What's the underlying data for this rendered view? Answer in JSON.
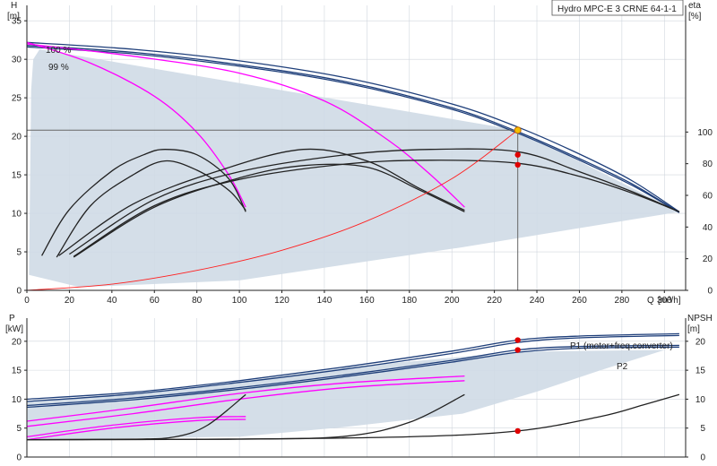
{
  "chart_data": [
    {
      "type": "line",
      "title": "Hydro MPC-E 3 CRNE 64-1-1",
      "y_label": "H",
      "y_unit": "[m]",
      "x_label": "Q",
      "x_unit": "[m³/h]",
      "y2_label": "eta",
      "y2_unit": "[%]",
      "xlim": [
        0,
        310
      ],
      "ylim": [
        0,
        37
      ],
      "y2lim": [
        0,
        180
      ],
      "x_ticks": [
        0,
        20,
        40,
        60,
        80,
        100,
        120,
        140,
        160,
        180,
        200,
        220,
        240,
        260,
        280,
        300
      ],
      "y_ticks": [
        0,
        5,
        10,
        15,
        20,
        25,
        30,
        35
      ],
      "y2_ticks": [
        0,
        20,
        40,
        60,
        80,
        100
      ],
      "grid": true,
      "annotations": {
        "speed_100": "100 %",
        "speed_99": "99 %"
      },
      "duty_point": {
        "q": 231,
        "h": 20.8,
        "eta_marks": [
          17.6,
          16.3
        ]
      },
      "shaded_region": [
        [
          1,
          2
        ],
        [
          2,
          26
        ],
        [
          3,
          30
        ],
        [
          6,
          31.3
        ],
        [
          231,
          20.8
        ],
        [
          307,
          10.2
        ],
        [
          205,
          5.6
        ],
        [
          100,
          1.3
        ],
        [
          25,
          0.4
        ]
      ],
      "series": [
        {
          "name": "",
          "color": "#1f3f7a",
          "points": [
            [
              0,
              32.2
            ],
            [
              50,
              31.3
            ],
            [
              100,
              29.8
            ],
            [
              150,
              27.6
            ],
            [
              200,
              24.2
            ],
            [
              231,
              21.2
            ],
            [
              260,
              17.7
            ],
            [
              285,
              14.2
            ],
            [
              307,
              10.2
            ]
          ]
        },
        {
          "name": "",
          "color": "#1f3f7a",
          "points": [
            [
              0,
              31.8
            ],
            [
              50,
              30.9
            ],
            [
              100,
              29.3
            ],
            [
              150,
              27.1
            ],
            [
              200,
              23.7
            ],
            [
              231,
              20.6
            ],
            [
              260,
              17.1
            ],
            [
              285,
              13.8
            ],
            [
              307,
              10.1
            ]
          ]
        },
        {
          "name": "",
          "color": "#1f3f7a",
          "points": [
            [
              0,
              31.6
            ],
            [
              50,
              30.7
            ],
            [
              100,
              29.1
            ],
            [
              150,
              26.9
            ],
            [
              200,
              23.5
            ],
            [
              231,
              20.4
            ],
            [
              260,
              16.9
            ],
            [
              285,
              13.6
            ],
            [
              307,
              10.1
            ]
          ]
        },
        {
          "name": "",
          "color": "#ff00ff",
          "points": [
            [
              0,
              32.2
            ],
            [
              30,
              29.5
            ],
            [
              60,
              25.2
            ],
            [
              80,
              20.5
            ],
            [
              95,
              15.0
            ],
            [
              103,
              10.8
            ]
          ]
        },
        {
          "name": "",
          "color": "#ff00ff",
          "points": [
            [
              0,
              32.0
            ],
            [
              50,
              30.4
            ],
            [
              100,
              28.2
            ],
            [
              140,
              24.6
            ],
            [
              170,
              19.5
            ],
            [
              190,
              15.0
            ],
            [
              206,
              10.8
            ]
          ]
        },
        {
          "name": "",
          "color": "#222222",
          "points": [
            [
              7,
              4.5
            ],
            [
              20,
              10.5
            ],
            [
              40,
              15.5
            ],
            [
              55,
              17.6
            ],
            [
              65,
              18.3
            ],
            [
              80,
              17.6
            ],
            [
              95,
              14.5
            ],
            [
              103,
              10.2
            ]
          ]
        },
        {
          "name": "",
          "color": "#222222",
          "points": [
            [
              14,
              4.3
            ],
            [
              30,
              11.0
            ],
            [
              50,
              15.0
            ],
            [
              65,
              16.8
            ],
            [
              80,
              15.6
            ],
            [
              95,
              13.0
            ],
            [
              103,
              10.4
            ]
          ]
        },
        {
          "name": "",
          "color": "#222222",
          "points": [
            [
              15,
              4.5
            ],
            [
              50,
              11.2
            ],
            [
              90,
              15.5
            ],
            [
              130,
              18.3
            ],
            [
              160,
              16.8
            ],
            [
              185,
              13.2
            ],
            [
              206,
              10.4
            ]
          ]
        },
        {
          "name": "",
          "color": "#222222",
          "points": [
            [
              22,
              4.3
            ],
            [
              60,
              10.8
            ],
            [
              100,
              14.6
            ],
            [
              130,
              16.2
            ],
            [
              160,
              16.0
            ],
            [
              185,
              13.0
            ],
            [
              206,
              10.2
            ]
          ]
        },
        {
          "name": "",
          "color": "#222222",
          "points": [
            [
              20,
              4.7
            ],
            [
              60,
              11.8
            ],
            [
              100,
              15.4
            ],
            [
              150,
              17.6
            ],
            [
              190,
              18.3
            ],
            [
              231,
              18.0
            ],
            [
              260,
              15.4
            ],
            [
              285,
              12.8
            ],
            [
              307,
              10.2
            ]
          ]
        },
        {
          "name": "",
          "color": "#222222",
          "points": [
            [
              22,
              4.4
            ],
            [
              60,
              11.0
            ],
            [
              100,
              14.4
            ],
            [
              150,
              16.4
            ],
            [
              190,
              16.9
            ],
            [
              231,
              16.5
            ],
            [
              260,
              14.8
            ],
            [
              285,
              12.6
            ],
            [
              307,
              10.2
            ]
          ]
        },
        {
          "name": "",
          "color": "#ff2020",
          "points": [
            [
              0,
              0
            ],
            [
              40,
              0.8
            ],
            [
              80,
              2.6
            ],
            [
              120,
              5.2
            ],
            [
              160,
              9.0
            ],
            [
              200,
              14.5
            ],
            [
              231,
              20.8
            ]
          ]
        }
      ]
    },
    {
      "type": "line",
      "y_label": "P",
      "y_unit": "[kW]",
      "y2_label": "NPSH",
      "y2_unit": "[m]",
      "xlim": [
        0,
        310
      ],
      "ylim": [
        0,
        24
      ],
      "y_ticks": [
        0,
        5,
        10,
        15,
        20
      ],
      "y2_ticks": [
        0,
        5,
        10,
        15,
        20
      ],
      "grid": true,
      "annotations": {
        "p1": "P1 (motor+freq.converter)",
        "p2": "P2"
      },
      "duty_marks": [
        [
          231,
          20.2
        ],
        [
          231,
          18.5
        ],
        [
          231,
          4.5
        ]
      ],
      "shaded_region": [
        [
          0,
          9.6
        ],
        [
          50,
          11.0
        ],
        [
          100,
          13.0
        ],
        [
          150,
          15.5
        ],
        [
          231,
          18.2
        ],
        [
          300,
          18.5
        ],
        [
          307,
          19.3
        ],
        [
          270,
          15.0
        ],
        [
          240,
          11.3
        ],
        [
          205,
          7.5
        ],
        [
          150,
          5.2
        ],
        [
          100,
          3.5
        ],
        [
          0,
          3.0
        ]
      ],
      "series": [
        {
          "name": "",
          "color": "#1f3f7a",
          "points": [
            [
              0,
              10.0
            ],
            [
              50,
              11.2
            ],
            [
              100,
              13.2
            ],
            [
              150,
              15.6
            ],
            [
              200,
              18.3
            ],
            [
              231,
              20.2
            ],
            [
              260,
              20.9
            ],
            [
              307,
              21.3
            ]
          ]
        },
        {
          "name": "",
          "color": "#1f3f7a",
          "points": [
            [
              0,
              9.6
            ],
            [
              50,
              10.9
            ],
            [
              100,
              12.9
            ],
            [
              150,
              15.2
            ],
            [
              200,
              17.9
            ],
            [
              231,
              19.8
            ],
            [
              260,
              20.6
            ],
            [
              307,
              21.0
            ]
          ]
        },
        {
          "name": "",
          "color": "#1f3f7a",
          "points": [
            [
              0,
              8.9
            ],
            [
              50,
              10.2
            ],
            [
              100,
              12.0
            ],
            [
              150,
              14.2
            ],
            [
              200,
              16.7
            ],
            [
              231,
              18.5
            ],
            [
              260,
              19.1
            ],
            [
              307,
              19.3
            ]
          ]
        },
        {
          "name": "",
          "color": "#1f3f7a",
          "points": [
            [
              0,
              8.6
            ],
            [
              50,
              9.9
            ],
            [
              100,
              11.7
            ],
            [
              150,
              13.9
            ],
            [
              200,
              16.4
            ],
            [
              231,
              18.1
            ],
            [
              260,
              18.8
            ],
            [
              307,
              19.0
            ]
          ]
        },
        {
          "name": "",
          "color": "#ff00ff",
          "points": [
            [
              0,
              6.2
            ],
            [
              50,
              8.5
            ],
            [
              100,
              11.0
            ],
            [
              150,
              12.8
            ],
            [
              206,
              14.0
            ]
          ]
        },
        {
          "name": "",
          "color": "#ff00ff",
          "points": [
            [
              0,
              5.3
            ],
            [
              50,
              7.5
            ],
            [
              100,
              10.0
            ],
            [
              150,
              12.0
            ],
            [
              206,
              13.2
            ]
          ]
        },
        {
          "name": "",
          "color": "#ff00ff",
          "points": [
            [
              0,
              3.5
            ],
            [
              40,
              5.5
            ],
            [
              80,
              6.8
            ],
            [
              103,
              7.0
            ]
          ]
        },
        {
          "name": "",
          "color": "#ff00ff",
          "points": [
            [
              0,
              3.0
            ],
            [
              40,
              5.0
            ],
            [
              80,
              6.3
            ],
            [
              103,
              6.5
            ]
          ]
        },
        {
          "name": "",
          "color": "#222222",
          "points": [
            [
              0,
              3.0
            ],
            [
              50,
              3.1
            ],
            [
              70,
              3.5
            ],
            [
              85,
              5.5
            ],
            [
              103,
              10.8
            ]
          ]
        },
        {
          "name": "",
          "color": "#222222",
          "points": [
            [
              0,
              3.0
            ],
            [
              100,
              3.1
            ],
            [
              150,
              3.6
            ],
            [
              180,
              6.0
            ],
            [
              206,
              10.8
            ]
          ]
        },
        {
          "name": "",
          "color": "#222222",
          "points": [
            [
              0,
              3.0
            ],
            [
              100,
              3.1
            ],
            [
              180,
              3.5
            ],
            [
              231,
              4.5
            ],
            [
              270,
              7.0
            ],
            [
              290,
              9.0
            ],
            [
              307,
              10.8
            ]
          ]
        }
      ]
    }
  ]
}
